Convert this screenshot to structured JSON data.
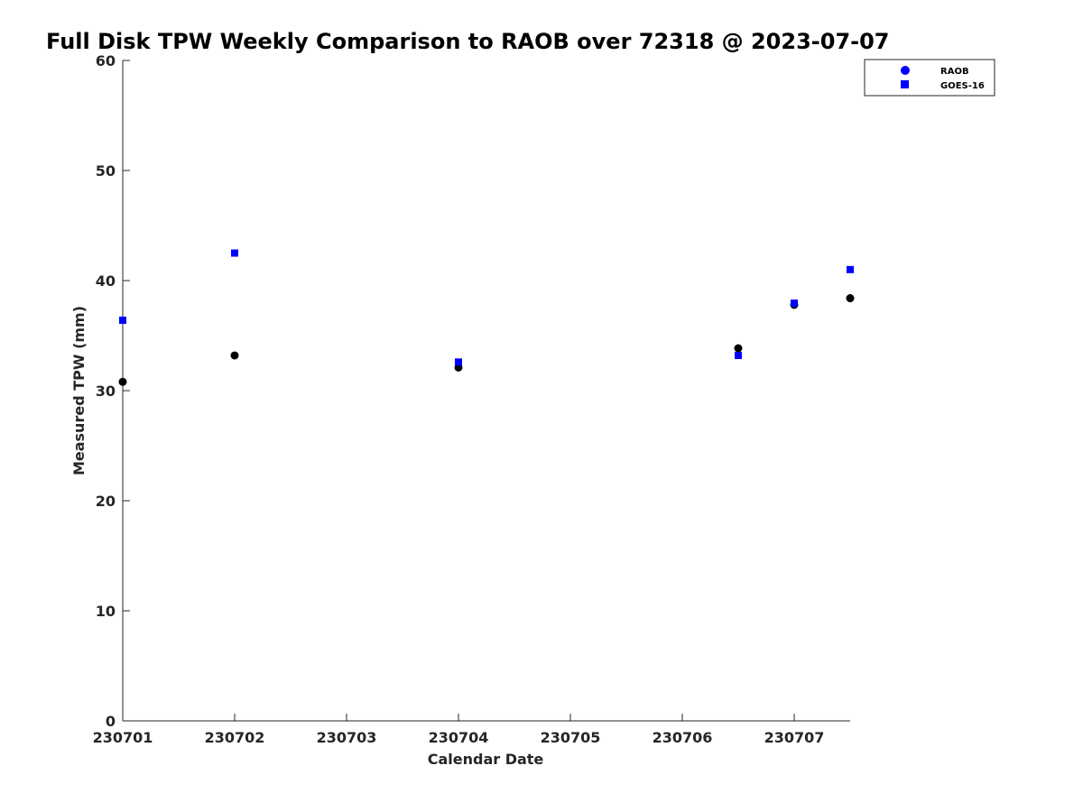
{
  "chart_data": {
    "type": "scatter",
    "title": "Full Disk TPW Weekly Comparison to RAOB over 72318 @ 2023-07-07",
    "xlabel": "Calendar Date",
    "ylabel": "Measured TPW (mm)",
    "xlim": [
      0,
      6.5
    ],
    "ylim": [
      0,
      60
    ],
    "x_tick_values": [
      0,
      1,
      2,
      3,
      4,
      5,
      6
    ],
    "x_tick_labels": [
      "230701",
      "230702",
      "230703",
      "230704",
      "230705",
      "230706",
      "230707"
    ],
    "y_tick_values": [
      0,
      10,
      20,
      30,
      40,
      50,
      60
    ],
    "y_tick_labels": [
      "0",
      "10",
      "20",
      "30",
      "40",
      "50",
      "60"
    ],
    "grid": false,
    "legend_position": "top-right",
    "series": [
      {
        "name": "RAOB",
        "marker": "circle",
        "color": "#000000",
        "legend_color": "#0000ff",
        "x": [
          0,
          1,
          3,
          5.5,
          6,
          6.5
        ],
        "y": [
          30.8,
          33.2,
          32.1,
          33.85,
          37.8,
          38.4
        ]
      },
      {
        "name": "GOES-16",
        "marker": "square",
        "color": "#0000ff",
        "legend_color": "#0000ff",
        "x": [
          0,
          1,
          3,
          5.5,
          6,
          6.5
        ],
        "y": [
          36.4,
          42.5,
          32.6,
          33.2,
          37.95,
          41.0
        ]
      }
    ]
  }
}
